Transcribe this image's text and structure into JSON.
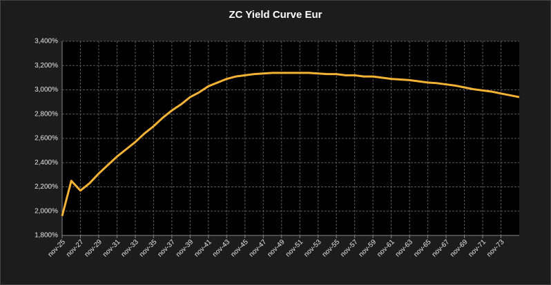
{
  "chart_data": {
    "type": "line",
    "title": "ZC Yield Curve Eur",
    "categories": [
      "nov-25",
      null,
      "nov-27",
      null,
      "nov-29",
      null,
      "nov-31",
      null,
      "nov-33",
      null,
      "nov-35",
      null,
      "nov-37",
      null,
      "nov-39",
      null,
      "nov-41",
      null,
      "nov-43",
      null,
      "nov-45",
      null,
      "nov-47",
      null,
      "nov-49",
      null,
      "nov-51",
      null,
      "nov-53",
      null,
      "nov-55",
      null,
      "nov-57",
      null,
      "nov-59",
      null,
      "nov-61",
      null,
      "nov-63",
      null,
      "nov-65",
      null,
      "nov-67",
      null,
      "nov-69",
      null,
      "nov-71",
      null,
      "nov-73",
      null,
      null
    ],
    "series": [
      {
        "name": "ZC Yield Curve Eur",
        "color": "#f5b335",
        "values": [
          1.96,
          2.25,
          2.17,
          2.23,
          2.31,
          2.38,
          2.45,
          2.51,
          2.57,
          2.64,
          2.7,
          2.77,
          2.83,
          2.88,
          2.94,
          2.98,
          3.03,
          3.06,
          3.09,
          3.11,
          3.12,
          3.13,
          3.135,
          3.14,
          3.14,
          3.14,
          3.14,
          3.14,
          3.135,
          3.13,
          3.13,
          3.12,
          3.12,
          3.11,
          3.11,
          3.1,
          3.09,
          3.085,
          3.08,
          3.07,
          3.06,
          3.055,
          3.045,
          3.035,
          3.02,
          3.005,
          2.995,
          2.985,
          2.97,
          2.955,
          2.94
        ]
      }
    ],
    "ylim": [
      1.8,
      3.4
    ],
    "yticks": [
      {
        "value": 1.8,
        "label": "1,800%"
      },
      {
        "value": 2.0,
        "label": "2,000%"
      },
      {
        "value": 2.2,
        "label": "2,200%"
      },
      {
        "value": 2.4,
        "label": "2,400%"
      },
      {
        "value": 2.6,
        "label": "2,600%"
      },
      {
        "value": 2.8,
        "label": "2,800%"
      },
      {
        "value": 3.0,
        "label": "3,000%"
      },
      {
        "value": 3.2,
        "label": "3,200%"
      },
      {
        "value": 3.4,
        "label": "3,400%"
      }
    ],
    "grid": true
  }
}
